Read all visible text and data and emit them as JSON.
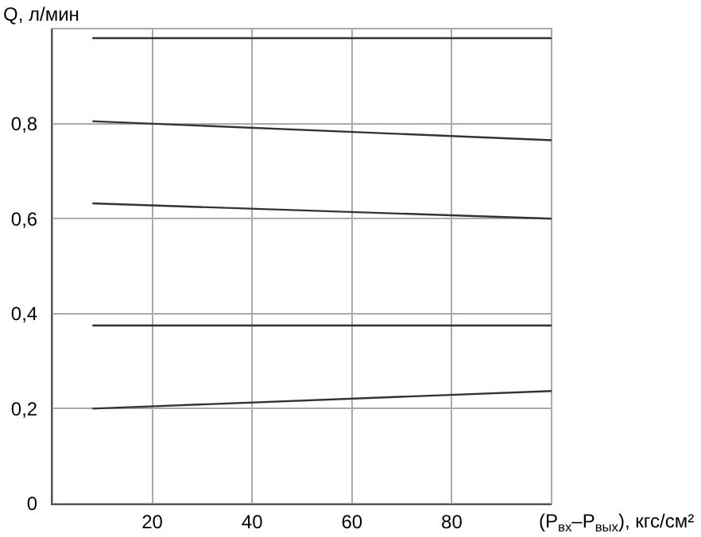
{
  "chart_data": {
    "type": "line",
    "xlabel": "(P$_{вх}$–P$_{вых}$), кгс/см²",
    "ylabel": "Q, л/мин",
    "x": [
      8,
      100
    ],
    "series": [
      {
        "color": "#333333",
        "values": [
          0.98,
          0.98
        ]
      },
      {
        "color": "#333333",
        "values": [
          0.805,
          0.765
        ]
      },
      {
        "color": "#333333",
        "values": [
          0.632,
          0.6
        ]
      },
      {
        "color": "#333333",
        "values": [
          0.375,
          0.375
        ]
      },
      {
        "color": "#333333",
        "values": [
          0.2,
          0.237
        ]
      }
    ],
    "xlim": [
      0,
      100
    ],
    "xticks": [
      20,
      40,
      60,
      80
    ],
    "ylim": [
      0,
      1
    ],
    "yticks": [
      {
        "value": 0,
        "label": "0"
      },
      {
        "value": 0.2,
        "label": "0,2"
      },
      {
        "value": 0.4,
        "label": "0,4"
      },
      {
        "value": 0.6,
        "label": "0,6"
      },
      {
        "value": 0.8,
        "label": "0,8"
      }
    ],
    "grid": true,
    "marker": "none",
    "line_style": "solid"
  }
}
